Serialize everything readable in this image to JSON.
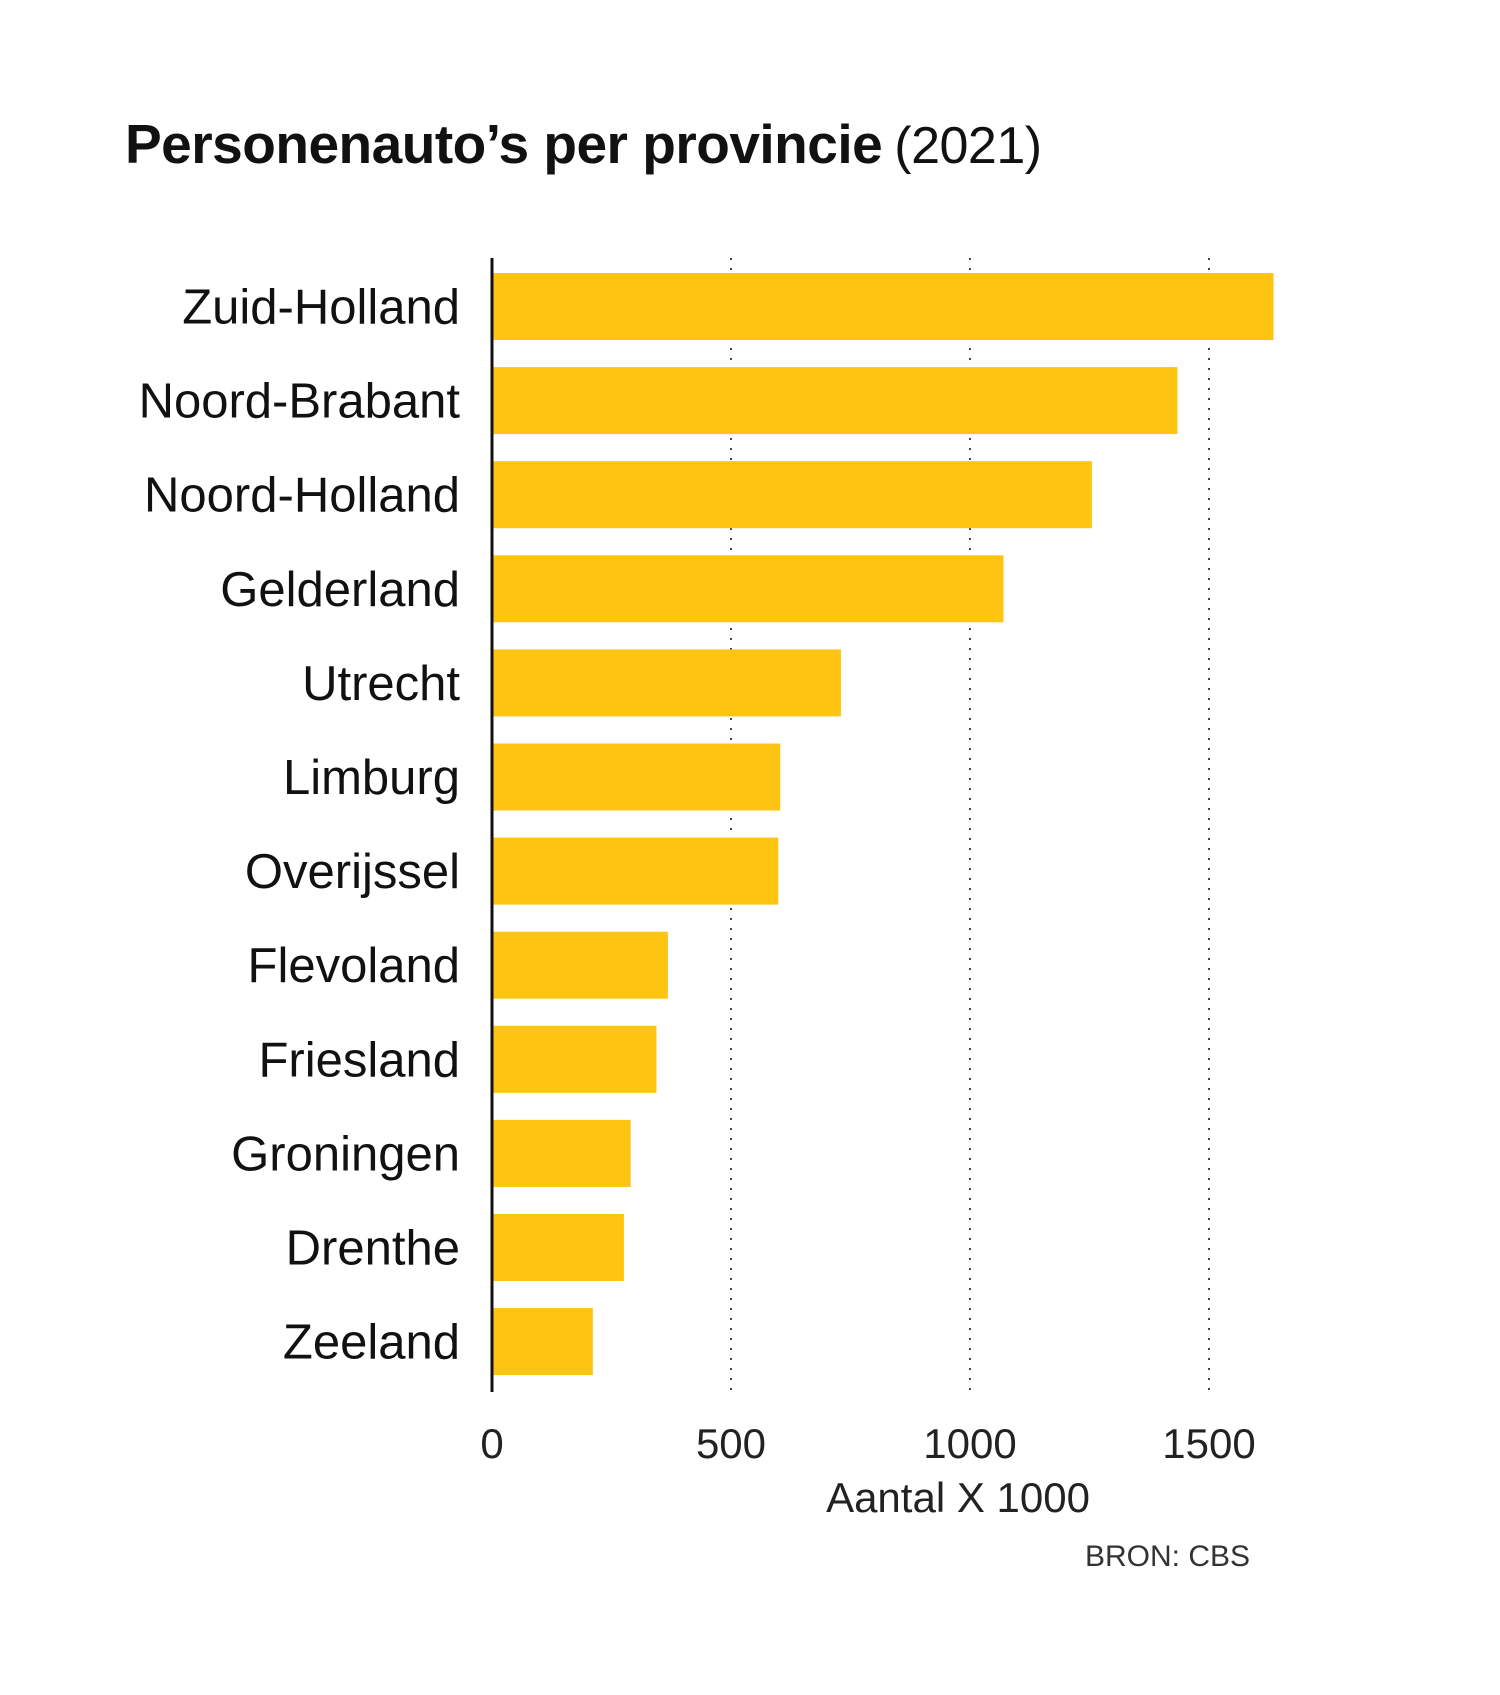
{
  "chart_data": {
    "type": "bar",
    "orientation": "horizontal",
    "title": "Personenauto’s per provincie",
    "subtitle": "(2021)",
    "categories": [
      "Zuid-Holland",
      "Noord-Brabant",
      "Noord-Holland",
      "Gelderland",
      "Utrecht",
      "Limburg",
      "Overijssel",
      "Flevoland",
      "Friesland",
      "Groningen",
      "Drenthe",
      "Zeeland"
    ],
    "values": [
      1635,
      1434,
      1255,
      1070,
      730,
      603,
      599,
      368,
      344,
      290,
      276,
      211
    ],
    "xlabel": "Aantal X 1000",
    "ylabel": "",
    "xlim": [
      0,
      1700
    ],
    "xticks": [
      0,
      500,
      1000,
      1500
    ],
    "xtick_labels": [
      "0",
      "500",
      "1000",
      "1500"
    ],
    "grid": "vertical dotted",
    "legend": "none",
    "bar_color": "#FDC512",
    "source": "BRON: CBS"
  }
}
